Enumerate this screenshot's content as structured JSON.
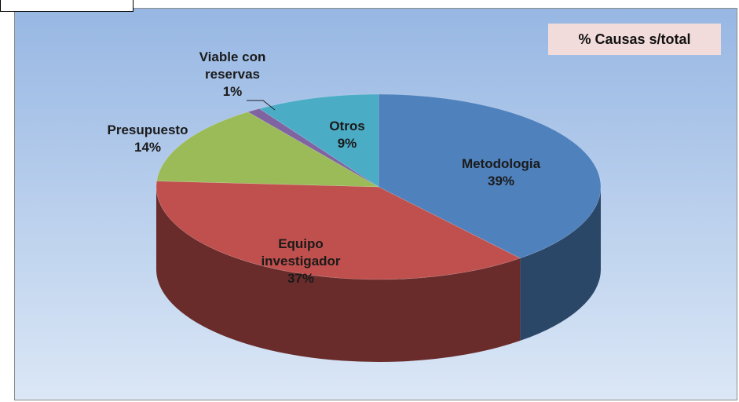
{
  "chart_data": {
    "type": "pie3d",
    "title": "% Causas s/total",
    "categories": [
      "Metodologia",
      "Equipo investigador",
      "Presupuesto",
      "Viable con reservas",
      "Otros"
    ],
    "values": [
      39,
      37,
      14,
      1,
      9
    ],
    "value_labels": [
      "39%",
      "37%",
      "14%",
      "1%",
      "9%"
    ],
    "colors": [
      "#4f81bd",
      "#c0504d",
      "#9bbb59",
      "#8064a2",
      "#4bacc6"
    ]
  }
}
